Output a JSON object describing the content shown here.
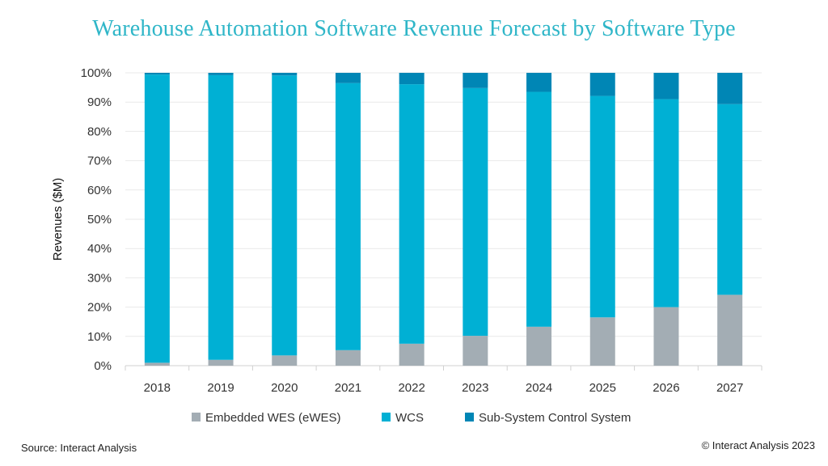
{
  "chart_data": {
    "type": "bar",
    "stacked": true,
    "title": "Warehouse Automation Software Revenue Forecast by Software Type",
    "ylabel": "Revenues ($M)",
    "xlabel": "",
    "ylim": [
      0,
      100
    ],
    "yticks": [
      "0%",
      "10%",
      "20%",
      "30%",
      "40%",
      "50%",
      "60%",
      "70%",
      "80%",
      "90%",
      "100%"
    ],
    "categories": [
      "2018",
      "2019",
      "2020",
      "2021",
      "2022",
      "2023",
      "2024",
      "2025",
      "2026",
      "2027"
    ],
    "series": [
      {
        "name": "Embedded WES (eWES)",
        "color": "#a3adb4",
        "values": [
          1.0,
          2.0,
          3.5,
          5.3,
          7.5,
          10.2,
          13.3,
          16.5,
          20.0,
          24.2
        ]
      },
      {
        "name": "WCS",
        "color": "#00b0d4",
        "values": [
          98.4,
          97.2,
          95.6,
          91.2,
          88.6,
          84.6,
          80.2,
          75.6,
          71.0,
          65.1
        ]
      },
      {
        "name": "Sub-System Control System",
        "color": "#0086b5",
        "values": [
          0.6,
          0.8,
          0.9,
          3.5,
          3.9,
          5.2,
          6.5,
          7.9,
          9.0,
          10.7
        ]
      }
    ],
    "legend_position": "bottom"
  },
  "footer": {
    "source": "Source: Interact Analysis",
    "copyright": "© Interact Analysis 2023"
  }
}
